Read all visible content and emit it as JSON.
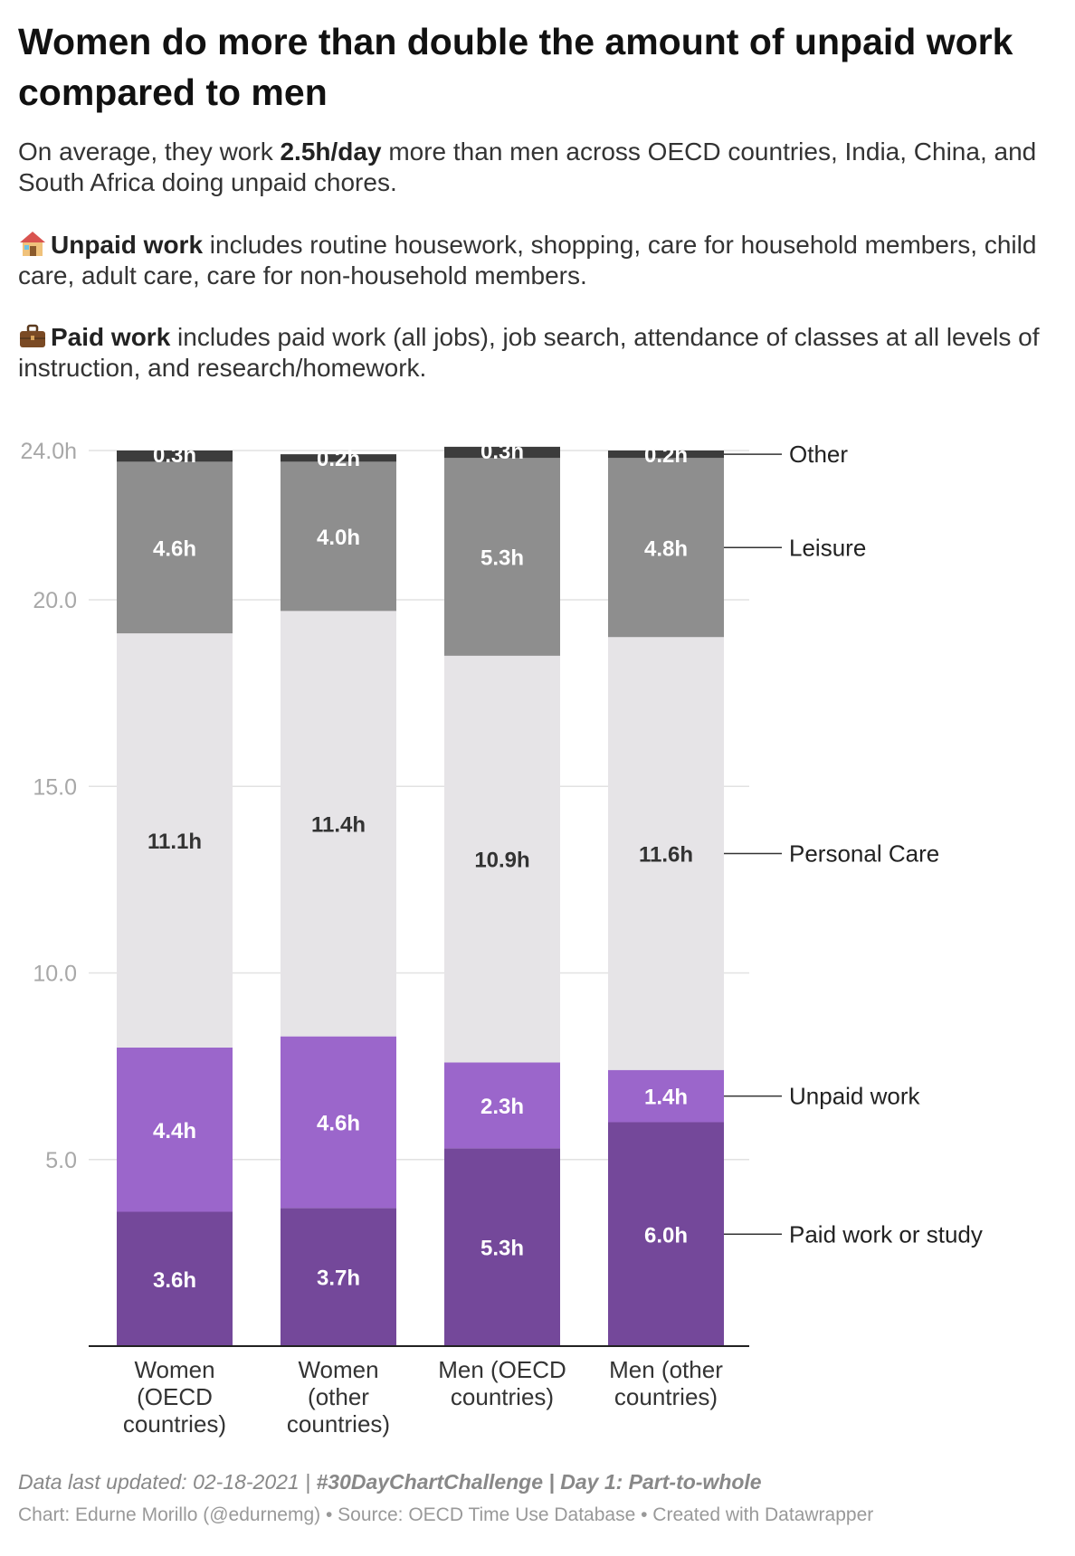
{
  "header": {
    "title": "Women do more than double the amount of unpaid work compared to men",
    "subtitle_pre": "On average, they work ",
    "subtitle_bold": "2.5h/day",
    "subtitle_post": " more than men across OECD countries, India, China, and South Africa doing unpaid chores.",
    "unpaid_icon": "house-icon",
    "unpaid_bold": "Unpaid work",
    "unpaid_text": " includes routine housework, shopping, care for household members, child care, adult care, care for non-household members.",
    "paid_icon": "briefcase-icon",
    "paid_bold": "Paid work",
    "paid_text": " includes paid work (all jobs), job search, attendance of classes at all levels of instruction, and research/homework."
  },
  "chart_data": {
    "type": "bar",
    "stacked": true,
    "categories": [
      [
        "Women",
        "(OECD",
        "countries)"
      ],
      [
        "Women",
        "(other",
        "countries)"
      ],
      [
        "Men (OECD",
        "countries)"
      ],
      [
        "Men (other",
        "countries)"
      ]
    ],
    "series": [
      {
        "name": "Paid work or study",
        "color": "#74489a",
        "values": [
          3.6,
          3.7,
          5.3,
          6.0
        ],
        "labels": [
          "3.6h",
          "3.7h",
          "5.3h",
          "6.0h"
        ]
      },
      {
        "name": "Unpaid work",
        "color": "#9b66cb",
        "values": [
          4.4,
          4.6,
          2.3,
          1.4
        ],
        "labels": [
          "4.4h",
          "4.6h",
          "2.3h",
          "1.4h"
        ]
      },
      {
        "name": "Personal Care",
        "color": "#e6e4e7",
        "values": [
          11.1,
          11.4,
          10.9,
          11.6
        ],
        "labels": [
          "11.1h",
          "11.4h",
          "10.9h",
          "11.6h"
        ]
      },
      {
        "name": "Leisure",
        "color": "#8e8e8e",
        "values": [
          4.6,
          4.0,
          5.3,
          4.8
        ],
        "labels": [
          "4.6h",
          "4.0h",
          "5.3h",
          "4.8h"
        ]
      },
      {
        "name": "Other",
        "color": "#3c3c3c",
        "values": [
          0.3,
          0.2,
          0.3,
          0.2
        ],
        "labels": [
          "0.3h",
          "0.2h",
          "0.3h",
          "0.2h"
        ]
      }
    ],
    "yticks": [
      {
        "value": 5,
        "label": "5.0"
      },
      {
        "value": 10,
        "label": "10.0"
      },
      {
        "value": 15,
        "label": "15.0"
      },
      {
        "value": 20,
        "label": "20.0"
      },
      {
        "value": 24,
        "label": "24.0h"
      }
    ],
    "ylim": [
      0,
      24
    ],
    "grid": true,
    "legend": "right, inline labels"
  },
  "footer": {
    "updated": "Data last updated: 02-18-2021 | ",
    "tag": "#30DayChartChallenge | Day 1: Part-to-whole",
    "credits": "Chart: Edurne Morillo (@edurnemg) • Source: OECD Time Use Database • Created with Datawrapper"
  }
}
